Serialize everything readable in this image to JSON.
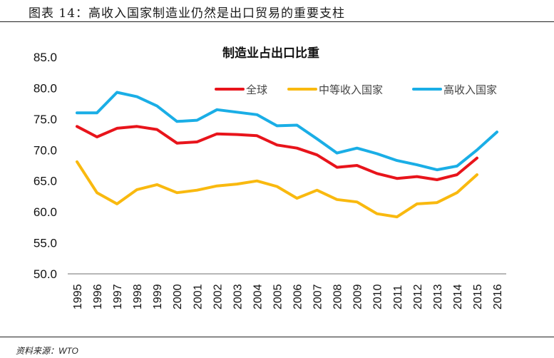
{
  "figure": {
    "title": "图表 14：高收入国家制造业仍然是出口贸易的重要支柱",
    "source": "资料来源：WTO"
  },
  "chart_data": {
    "type": "line",
    "title": "制造业占出口比重",
    "xlabel": "",
    "ylabel": "",
    "ylim": [
      50,
      85
    ],
    "yticks": [
      "50.0",
      "55.0",
      "60.0",
      "65.0",
      "70.0",
      "75.0",
      "80.0",
      "85.0"
    ],
    "ytick_values": [
      50,
      55,
      60,
      65,
      70,
      75,
      80,
      85
    ],
    "grid": false,
    "legend_position": "top-right",
    "x": [
      "1995",
      "1996",
      "1997",
      "1998",
      "1999",
      "2000",
      "2001",
      "2002",
      "2003",
      "2004",
      "2005",
      "2006",
      "2007",
      "2008",
      "2009",
      "2010",
      "2011",
      "2012",
      "2013",
      "2014",
      "2015",
      "2016"
    ],
    "series": [
      {
        "name": "全球",
        "color": "#e8141b",
        "values": [
          73.8,
          72.1,
          73.5,
          73.8,
          73.3,
          71.1,
          71.3,
          72.6,
          72.5,
          72.3,
          70.8,
          70.3,
          69.2,
          67.2,
          67.5,
          66.2,
          65.4,
          65.7,
          65.2,
          66.0,
          68.7,
          null
        ]
      },
      {
        "name": "中等收入国家",
        "color": "#f9b90f",
        "values": [
          68.1,
          63.1,
          61.3,
          63.6,
          64.4,
          63.1,
          63.5,
          64.2,
          64.5,
          65.0,
          64.1,
          62.2,
          63.5,
          62.0,
          61.6,
          59.7,
          59.2,
          61.3,
          61.5,
          63.1,
          66.0,
          null
        ]
      },
      {
        "name": "高收入国家",
        "color": "#1aaee6",
        "values": [
          76.0,
          76.0,
          79.3,
          78.6,
          77.1,
          74.6,
          74.8,
          76.5,
          76.1,
          75.7,
          73.9,
          74.0,
          71.8,
          69.5,
          70.3,
          69.4,
          68.3,
          67.6,
          66.8,
          67.4,
          70.0,
          72.9
        ]
      }
    ]
  }
}
